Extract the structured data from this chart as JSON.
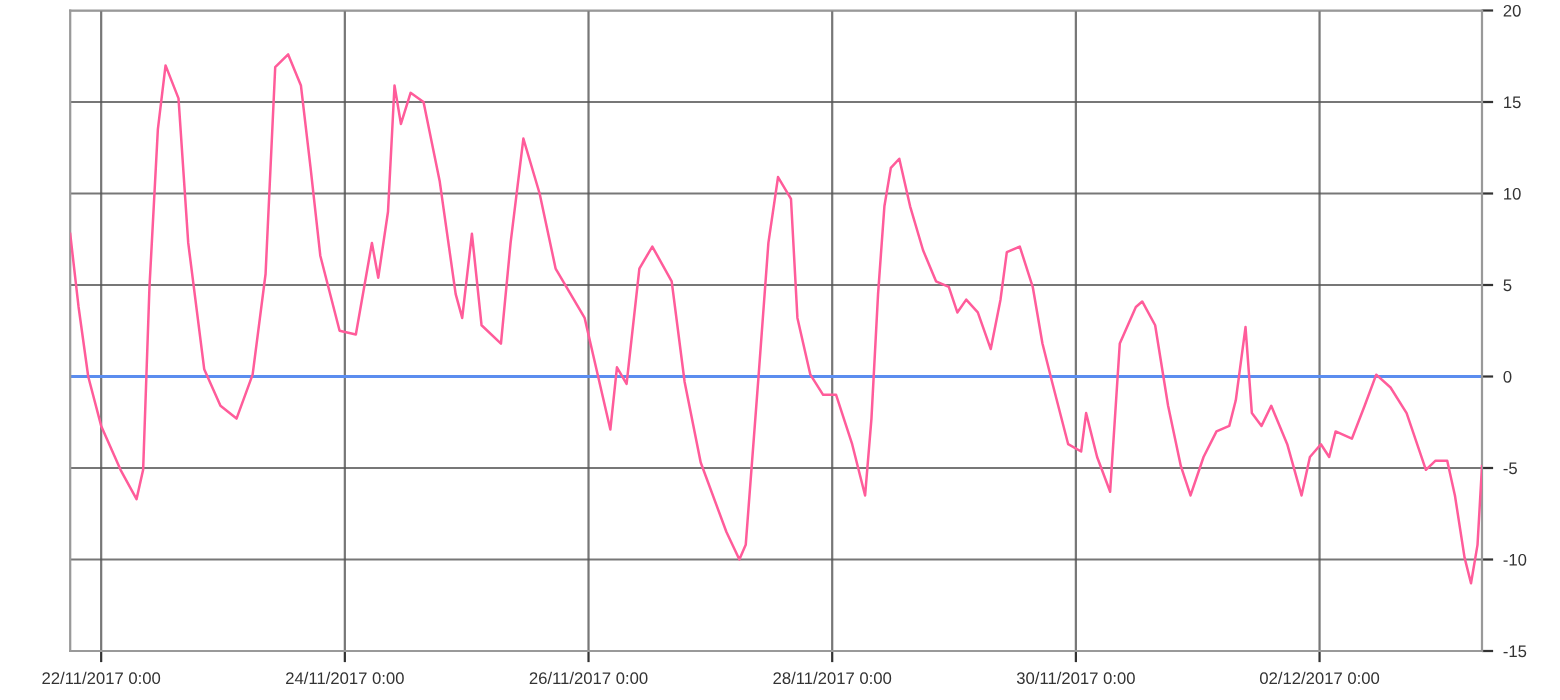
{
  "chart_data": {
    "type": "line",
    "x": [
      "2017-11-21T17:54",
      "2017-11-21T19:33",
      "2017-11-21T21:27",
      "2017-11-22T00:00",
      "2017-11-22T03:49",
      "2017-11-22T06:58",
      "2017-11-22T08:16",
      "2017-11-22T09:31",
      "2017-11-22T11:10",
      "2017-11-22T12:41",
      "2017-11-22T15:14",
      "2017-11-22T17:09",
      "2017-11-22T20:18",
      "2017-11-22T23:30",
      "2017-11-23T02:40",
      "2017-11-23T05:50",
      "2017-11-23T08:23",
      "2017-11-23T10:17",
      "2017-11-23T12:50",
      "2017-11-23T15:21",
      "2017-11-23T17:15",
      "2017-11-23T19:10",
      "2017-11-23T22:58",
      "2017-11-24T02:10",
      "2017-11-24T05:20",
      "2017-11-24T06:35",
      "2017-11-24T08:30",
      "2017-11-24T09:47",
      "2017-11-24T11:03",
      "2017-11-24T12:57",
      "2017-11-24T15:30",
      "2017-11-24T18:40",
      "2017-11-24T21:50",
      "2017-11-24T23:07",
      "2017-11-25T01:02",
      "2017-11-25T02:56",
      "2017-11-25T06:45",
      "2017-11-25T08:39",
      "2017-11-25T11:10",
      "2017-11-25T14:22",
      "2017-11-25T17:31",
      "2017-11-25T23:14",
      "2017-11-26T04:18",
      "2017-11-26T05:36",
      "2017-11-26T07:30",
      "2017-11-26T10:01",
      "2017-11-26T12:34",
      "2017-11-26T16:23",
      "2017-11-26T18:56",
      "2017-11-26T22:06",
      "2017-11-27T03:10",
      "2017-11-27T05:43",
      "2017-11-27T06:58",
      "2017-11-27T09:31",
      "2017-11-27T11:26",
      "2017-11-27T13:20",
      "2017-11-27T15:53",
      "2017-11-27T17:09",
      "2017-11-27T19:42",
      "2017-11-27T22:13",
      "2017-11-28T00:46",
      "2017-11-28T03:56",
      "2017-11-28T06:29",
      "2017-11-28T07:44",
      "2017-11-28T09:02",
      "2017-11-28T10:17",
      "2017-11-28T11:33",
      "2017-11-28T13:13",
      "2017-11-28T15:21",
      "2017-11-28T17:54",
      "2017-11-28T20:27",
      "2017-11-28T22:58",
      "2017-11-29T00:39",
      "2017-11-29T02:24",
      "2017-11-29T04:41",
      "2017-11-29T07:14",
      "2017-11-29T09:09",
      "2017-11-29T10:24",
      "2017-11-29T12:57",
      "2017-11-29T15:30",
      "2017-11-29T17:25",
      "2017-11-29T19:19",
      "2017-11-29T22:29",
      "2017-11-30T01:02",
      "2017-11-30T02:01",
      "2017-11-30T04:11",
      "2017-11-30T06:45",
      "2017-11-30T08:39",
      "2017-11-30T11:49",
      "2017-11-30T13:04",
      "2017-11-30T15:37",
      "2017-11-30T18:10",
      "2017-11-30T20:41",
      "2017-11-30T22:35",
      "2017-12-01T01:09",
      "2017-12-01T03:42",
      "2017-12-01T06:13",
      "2017-12-01T07:30",
      "2017-12-01T09:25",
      "2017-12-01T10:40",
      "2017-12-01T12:34",
      "2017-12-01T14:29",
      "2017-12-01T17:38",
      "2017-12-01T20:27",
      "2017-12-01T22:06",
      "2017-12-02T00:16",
      "2017-12-02T01:54",
      "2017-12-02T03:10",
      "2017-12-02T06:22",
      "2017-12-02T08:53",
      "2017-12-02T11:10",
      "2017-12-02T13:59",
      "2017-12-02T17:09",
      "2017-12-02T20:57",
      "2017-12-02T22:51",
      "2017-12-03T01:09",
      "2017-12-03T02:40",
      "2017-12-03T04:34",
      "2017-12-03T05:50",
      "2017-12-03T07:07",
      "2017-12-03T08:00"
    ],
    "series": [
      {
        "color": "#ff5c9a",
        "values": [
          7.8,
          3.8,
          0,
          -2.7,
          -5.1,
          -6.7,
          -5.1,
          4.9,
          13.5,
          17.0,
          15.2,
          7.3,
          0.4,
          -1.6,
          -2.3,
          0.1,
          5.6,
          16.9,
          17.6,
          15.9,
          11.4,
          6.6,
          2.5,
          2.3,
          7.3,
          5.4,
          9.0,
          15.9,
          13.8,
          15.5,
          15.0,
          10.7,
          4.5,
          3.2,
          7.8,
          2.8,
          1.8,
          7.3,
          13.0,
          10.0,
          5.9,
          3.2,
          -2.9,
          0.5,
          -0.4,
          5.9,
          7.1,
          5.2,
          -0.3,
          -4.7,
          -8.5,
          -10.0,
          -9.2,
          0.1,
          7.3,
          10.9,
          9.7,
          3.2,
          0.1,
          -1.0,
          -1.0,
          -3.7,
          -6.5,
          -2.3,
          4.5,
          9.3,
          11.4,
          11.9,
          9.3,
          6.9,
          5.2,
          4.9,
          3.5,
          4.2,
          3.5,
          1.5,
          4.2,
          6.8,
          7.1,
          4.9,
          1.8,
          -0.3,
          -3.7,
          -4.1,
          -2.0,
          -4.4,
          -6.3,
          1.8,
          3.8,
          4.1,
          2.8,
          -1.6,
          -4.9,
          -6.5,
          -4.4,
          -3.0,
          -2.7,
          -1.3,
          2.7,
          -2.0,
          -2.7,
          -1.6,
          -3.7,
          -6.5,
          -4.4,
          -3.7,
          -4.4,
          -3.0,
          -3.4,
          -1.6,
          0.1,
          -0.6,
          -2.0,
          -5.1,
          -4.6,
          -4.6,
          -6.5,
          -9.9,
          -11.3,
          -9.2,
          -4.9
        ]
      }
    ],
    "xlim": [
      "2017-11-21T17:54",
      "2017-12-03T08:00"
    ],
    "xticks": [
      {
        "value": "2017-11-22",
        "label": "22/11/2017 0:00"
      },
      {
        "value": "2017-11-24",
        "label": "24/11/2017 0:00"
      },
      {
        "value": "2017-11-26",
        "label": "26/11/2017 0:00"
      },
      {
        "value": "2017-11-28",
        "label": "28/11/2017 0:00"
      },
      {
        "value": "2017-11-30",
        "label": "30/11/2017 0:00"
      },
      {
        "value": "2017-12-02",
        "label": "02/12/2017 0:00"
      }
    ],
    "ylim": [
      -15,
      20
    ],
    "yticks": [
      -15,
      -10,
      -5,
      0,
      5,
      10,
      15,
      20
    ],
    "ref_lines": [
      {
        "axis": "y",
        "value": 0,
        "color": "#5b8def"
      }
    ],
    "grid": true,
    "marker": "none",
    "line_style": "solid"
  }
}
